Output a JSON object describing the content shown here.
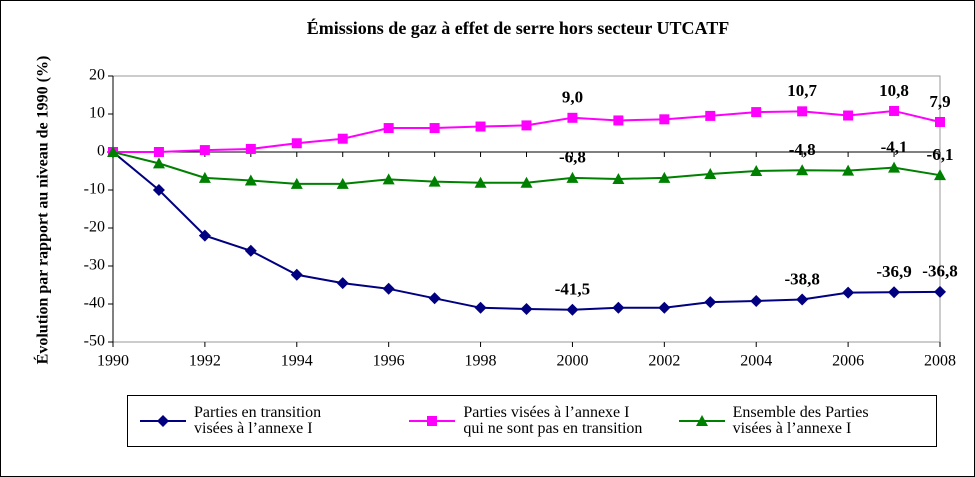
{
  "chart_data": {
    "type": "line",
    "title": "Émissions de gaz à effet de serre hors secteur UTCATF",
    "y_label": "Évolution par rapport au niveau de 1990 (%)",
    "x": [
      1990,
      1991,
      1992,
      1993,
      1994,
      1995,
      1996,
      1997,
      1998,
      1999,
      2000,
      2001,
      2002,
      2003,
      2004,
      2005,
      2006,
      2007,
      2008
    ],
    "xlim": [
      1990,
      2008
    ],
    "xticks": [
      1990,
      1992,
      1994,
      1996,
      1998,
      2000,
      2002,
      2004,
      2006,
      2008
    ],
    "ylim": [
      -50,
      20
    ],
    "yticks": [
      -50,
      -40,
      -30,
      -20,
      -10,
      0,
      10,
      20
    ],
    "grid": false,
    "legend": "bottom",
    "series": [
      {
        "name": "Parties en transition\nvisées à l’annexe I",
        "color": "#000080",
        "marker": "diamond",
        "values": [
          0,
          -10,
          -22,
          -26,
          -32.3,
          -34.5,
          -36,
          -38.5,
          -41,
          -41.3,
          -41.5,
          -41,
          -41,
          -39.5,
          -39.2,
          -38.8,
          -37,
          -36.9,
          -36.8
        ],
        "value_labels": [
          null,
          null,
          null,
          null,
          null,
          null,
          null,
          null,
          null,
          null,
          "-41,5",
          null,
          null,
          null,
          null,
          "-38,8",
          null,
          "-36,9",
          "-36,8"
        ]
      },
      {
        "name": "Parties visées à l’annexe I\nqui ne sont pas en transition",
        "color": "#ff00ff",
        "marker": "square",
        "values": [
          0,
          0,
          0.5,
          0.8,
          2.3,
          3.5,
          6.3,
          6.3,
          6.7,
          7,
          9.0,
          8.3,
          8.6,
          9.5,
          10.5,
          10.7,
          9.6,
          10.8,
          7.9
        ],
        "value_labels": [
          null,
          null,
          null,
          null,
          null,
          null,
          null,
          null,
          null,
          null,
          "9,0",
          null,
          null,
          null,
          null,
          "10,7",
          null,
          "10,8",
          "7,9"
        ]
      },
      {
        "name": "Ensemble des Parties\nvisées à l’annexe I",
        "color": "#008000",
        "marker": "triangle",
        "values": [
          0,
          -3,
          -6.8,
          -7.5,
          -8.4,
          -8.4,
          -7.2,
          -7.8,
          -8.1,
          -8.1,
          -6.8,
          -7.1,
          -6.8,
          -5.8,
          -5.0,
          -4.8,
          -4.9,
          -4.1,
          -6.1
        ],
        "value_labels": [
          null,
          null,
          null,
          null,
          null,
          null,
          null,
          null,
          null,
          null,
          "-6,8",
          null,
          null,
          null,
          null,
          "-4,8",
          null,
          "-4,1",
          "-6,1"
        ]
      }
    ]
  }
}
